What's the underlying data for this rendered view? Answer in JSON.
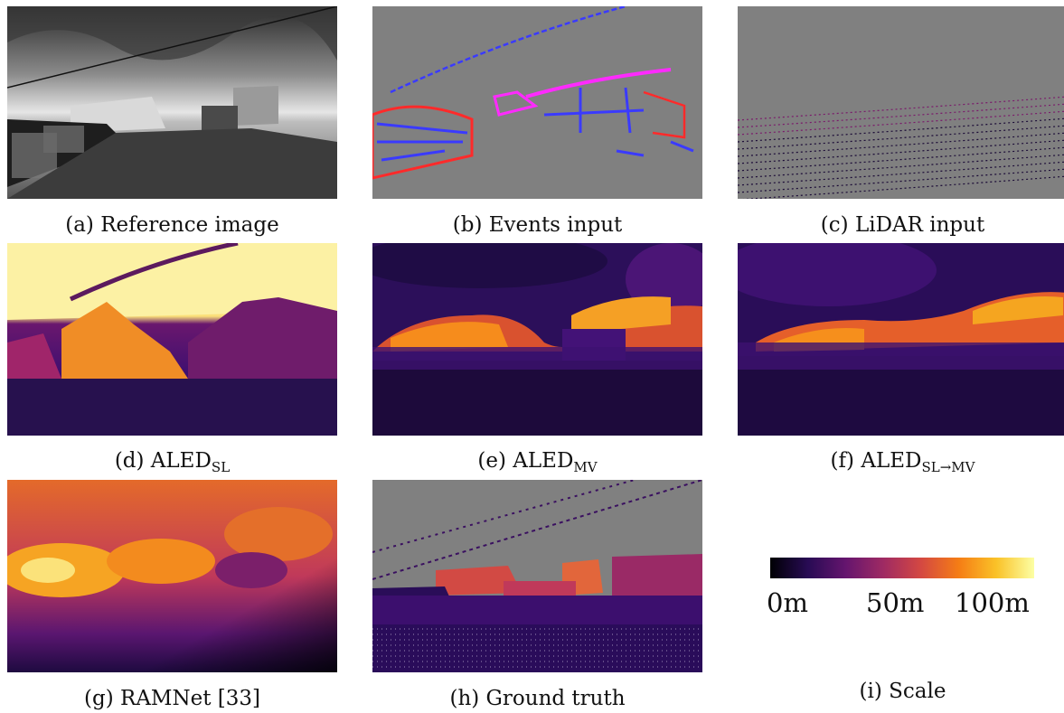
{
  "figure": {
    "panels": [
      {
        "id": "a",
        "label": "(a)",
        "title": "Reference image",
        "sub": ""
      },
      {
        "id": "b",
        "label": "(b)",
        "title": "Events input",
        "sub": ""
      },
      {
        "id": "c",
        "label": "(c)",
        "title": "LiDAR input",
        "sub": ""
      },
      {
        "id": "d",
        "label": "(d)",
        "title": "ALED",
        "sub": "SL"
      },
      {
        "id": "e",
        "label": "(e)",
        "title": "ALED",
        "sub": "MV"
      },
      {
        "id": "f",
        "label": "(f)",
        "title": "ALED",
        "sub": "SL→MV"
      },
      {
        "id": "g",
        "label": "(g)",
        "title": "RAMNet [33]",
        "sub": ""
      },
      {
        "id": "h",
        "label": "(h)",
        "title": "Ground truth",
        "sub": ""
      },
      {
        "id": "i",
        "label": "(i)",
        "title": "Scale",
        "sub": ""
      }
    ],
    "scale": {
      "ticks": [
        "0m",
        "50m",
        "100m"
      ],
      "colormap": [
        "#000004",
        "#280b54",
        "#65156e",
        "#9f2a63",
        "#d44842",
        "#f57d15",
        "#fac228",
        "#fcffa4"
      ]
    }
  }
}
